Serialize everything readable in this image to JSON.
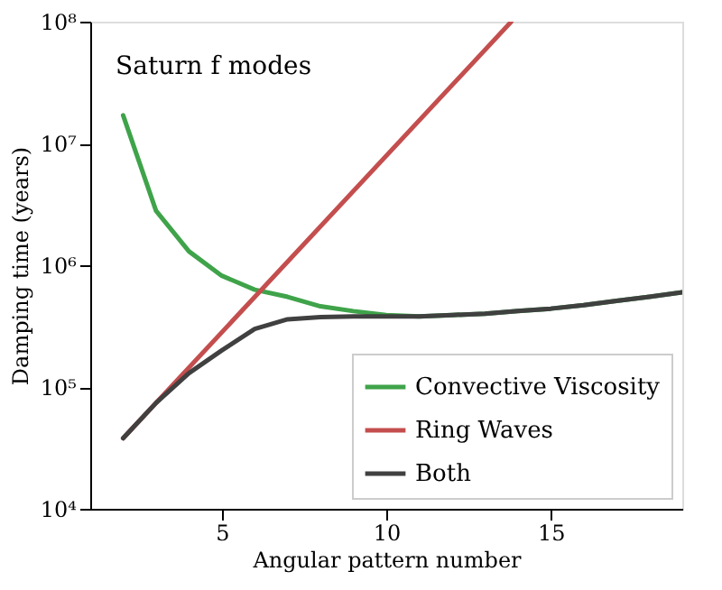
{
  "chart_data": {
    "type": "line",
    "xlabel": "Angular pattern number",
    "ylabel": "Damping time (years)",
    "annotations": [
      "Saturn f modes"
    ],
    "xlim": [
      1,
      19
    ],
    "xticks": [
      5,
      10,
      15
    ],
    "ylim": [
      10000,
      100000000
    ],
    "yticks": [
      {
        "value": 10000,
        "label": "10⁴"
      },
      {
        "value": 100000,
        "label": "10⁵"
      },
      {
        "value": 1000000,
        "label": "10⁶"
      },
      {
        "value": 10000000,
        "label": "10⁷"
      },
      {
        "value": 100000000,
        "label": "10⁸"
      }
    ],
    "log": "y",
    "grid": false,
    "legend": "bottom right",
    "marker": "none",
    "line_style": "solid",
    "series": [
      {
        "name": "Convective Viscosity",
        "color": "#3fa34a",
        "x": [
          2,
          3,
          4,
          5,
          6,
          7,
          8,
          9,
          10,
          11,
          12,
          13,
          14,
          15,
          16,
          17,
          18,
          19
        ],
        "values": [
          17000000,
          2800000,
          1300000,
          820000,
          630000,
          550000,
          460000,
          420000,
          390000,
          380000,
          390000,
          400000,
          420000,
          440000,
          470000,
          510000,
          550000,
          600000
        ]
      },
      {
        "name": "Ring Waves",
        "color": "#c44e4e",
        "x": [
          2,
          13.8
        ],
        "values": [
          38000,
          100000000
        ]
      },
      {
        "name": "Both",
        "color": "#404040",
        "x": [
          2,
          3,
          4,
          5,
          6,
          7,
          8,
          9,
          10,
          11,
          12,
          13,
          14,
          15,
          16,
          17,
          18,
          19
        ],
        "values": [
          38000,
          74000,
          130000,
          200000,
          300000,
          360000,
          375000,
          380000,
          380000,
          380000,
          390000,
          400000,
          420000,
          440000,
          470000,
          510000,
          550000,
          600000
        ]
      }
    ]
  }
}
